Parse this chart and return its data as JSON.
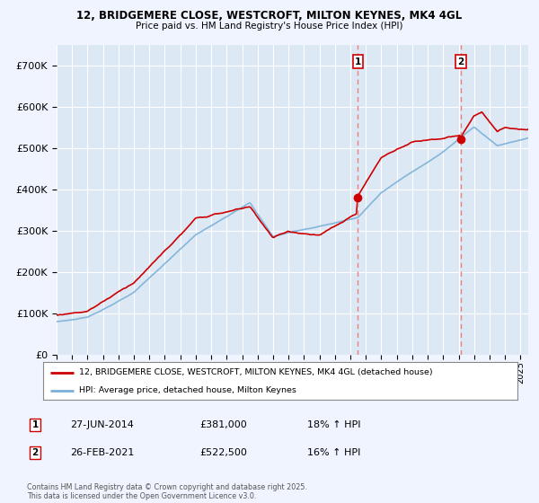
{
  "title1": "12, BRIDGEMERE CLOSE, WESTCROFT, MILTON KEYNES, MK4 4GL",
  "title2": "Price paid vs. HM Land Registry's House Price Index (HPI)",
  "ylim": [
    0,
    750000
  ],
  "yticks": [
    0,
    100000,
    200000,
    300000,
    400000,
    500000,
    600000,
    700000
  ],
  "xlim_start": 1995.0,
  "xlim_end": 2025.5,
  "background_color": "#f0f4ff",
  "plot_bg_color": "#dde8f5",
  "grid_color": "#ffffff",
  "hpi_color": "#7ab0d8",
  "price_color": "#cc0000",
  "vline_color": "#e88080",
  "marker1_date": 2014.49,
  "marker1_price": 381000,
  "marker1_label": "1",
  "marker2_date": 2021.15,
  "marker2_price": 522500,
  "marker2_label": "2",
  "legend_line1": "12, BRIDGEMERE CLOSE, WESTCROFT, MILTON KEYNES, MK4 4GL (detached house)",
  "legend_line2": "HPI: Average price, detached house, Milton Keynes",
  "annotation1_date": "27-JUN-2014",
  "annotation1_price": "£381,000",
  "annotation1_hpi": "18% ↑ HPI",
  "annotation2_date": "26-FEB-2021",
  "annotation2_price": "£522,500",
  "annotation2_hpi": "16% ↑ HPI",
  "footer": "Contains HM Land Registry data © Crown copyright and database right 2025.\nThis data is licensed under the Open Government Licence v3.0."
}
